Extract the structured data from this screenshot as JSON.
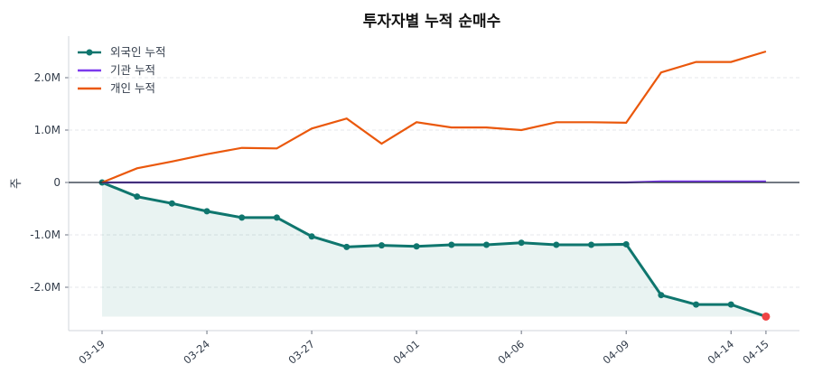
{
  "chart_data": {
    "type": "line",
    "title": "투자자별 누적 순매수",
    "ylabel": "주",
    "xlabel": "",
    "ylim": [
      -2.75,
      2.75
    ],
    "yunit": "M",
    "y_ticks": [
      {
        "v": 2,
        "label": "2.0M"
      },
      {
        "v": 1,
        "label": "1.0M"
      },
      {
        "v": 0,
        "label": "0"
      },
      {
        "v": -1,
        "label": "-1.0M"
      },
      {
        "v": -2,
        "label": "-2.0M"
      }
    ],
    "x_ticks": [
      {
        "i": 0,
        "label": "03-19"
      },
      {
        "i": 3,
        "label": "03-24"
      },
      {
        "i": 6,
        "label": "03-27"
      },
      {
        "i": 9,
        "label": "04-01"
      },
      {
        "i": 12,
        "label": "04-06"
      },
      {
        "i": 15,
        "label": "04-09"
      },
      {
        "i": 18,
        "label": "04-14"
      },
      {
        "i": 19,
        "label": "04-15"
      }
    ],
    "grid": "horizontal dashed",
    "legend": "top-left",
    "series": [
      {
        "name": "외국인 누적",
        "color": "#0f766e",
        "markers": true,
        "fill": true,
        "values": [
          0,
          -0.27,
          -0.4,
          -0.55,
          -0.67,
          -0.67,
          -1.03,
          -1.23,
          -1.2,
          -1.22,
          -1.19,
          -1.19,
          -1.15,
          -1.19,
          -1.19,
          -1.18,
          -2.15,
          -2.33,
          -2.33,
          -2.56
        ]
      },
      {
        "name": "기관 누적",
        "color": "#7c3aed",
        "values": [
          0,
          0,
          0,
          0,
          0,
          0,
          0,
          0,
          0,
          0,
          0,
          0,
          0,
          0,
          0,
          0,
          0.02,
          0.02,
          0.02,
          0.02
        ]
      },
      {
        "name": "개인 누적",
        "color": "#ea580c",
        "values": [
          0,
          0.27,
          0.4,
          0.54,
          0.66,
          0.65,
          1.03,
          1.22,
          0.74,
          1.15,
          1.05,
          1.05,
          1.0,
          1.15,
          1.15,
          1.14,
          2.1,
          2.3,
          2.3,
          2.5
        ]
      }
    ],
    "last_point_highlight_color": "#ef4444"
  }
}
